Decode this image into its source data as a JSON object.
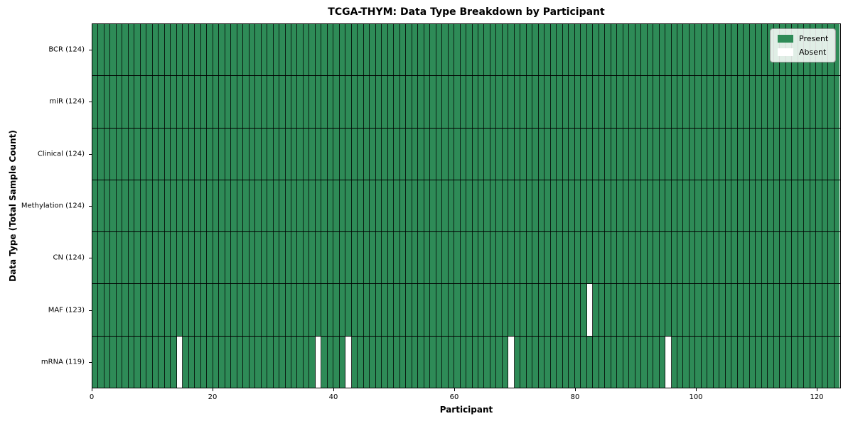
{
  "chart_data": {
    "type": "heatmap",
    "title": "TCGA-THYM: Data Type Breakdown by Participant",
    "xlabel": "Participant",
    "ylabel": "Data Type (Total Sample Count)",
    "n_participants": 124,
    "xlim": [
      0,
      124
    ],
    "x_ticks": [
      0,
      20,
      40,
      60,
      80,
      100,
      120
    ],
    "grid": "cell-borders",
    "legend_position": "upper-right",
    "rows": [
      {
        "label": "BCR (124)",
        "data_type": "BCR",
        "total_samples": 124,
        "absent_participant_indexes": []
      },
      {
        "label": "miR (124)",
        "data_type": "miR",
        "total_samples": 124,
        "absent_participant_indexes": []
      },
      {
        "label": "Clinical (124)",
        "data_type": "Clinical",
        "total_samples": 124,
        "absent_participant_indexes": []
      },
      {
        "label": "Methylation (124)",
        "data_type": "Methylation",
        "total_samples": 124,
        "absent_participant_indexes": []
      },
      {
        "label": "CN (124)",
        "data_type": "CN",
        "total_samples": 124,
        "absent_participant_indexes": []
      },
      {
        "label": "MAF (123)",
        "data_type": "MAF",
        "total_samples": 123,
        "absent_participant_indexes": [
          82
        ]
      },
      {
        "label": "mRNA (119)",
        "data_type": "mRNA",
        "total_samples": 119,
        "absent_participant_indexes": [
          14,
          37,
          42,
          69,
          95
        ]
      }
    ],
    "legend": [
      {
        "label": "Present",
        "color": "#2e8b57"
      },
      {
        "label": "Absent",
        "color": "#ffffff"
      }
    ],
    "colors": {
      "present": "#2e8b57",
      "absent": "#ffffff",
      "cell_edge": "#1b3526",
      "row_separator": "#000000",
      "plot_border": "#000000",
      "legend_border": "#9a9a9a"
    }
  }
}
